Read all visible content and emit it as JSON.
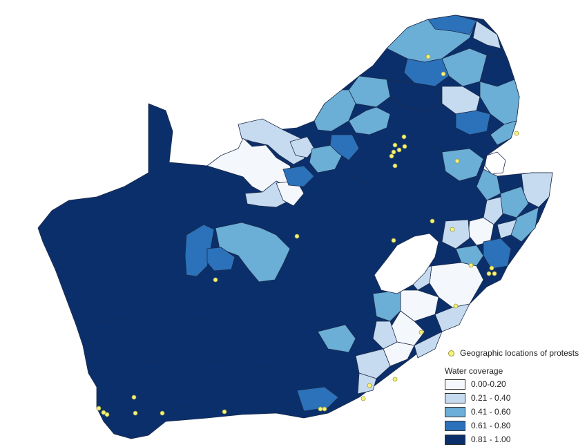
{
  "colors": {
    "c0": "#f4f8fd",
    "c1": "#c6dbef",
    "c2": "#6baed6",
    "c3": "#2b72ba",
    "c4": "#0b2f6b",
    "protest": "#f6f27a",
    "border": "#1c2b4a"
  },
  "legend": {
    "protest_label": "Geographic locations of protests",
    "title": "Water coverage",
    "bins": [
      {
        "label": "0.00-0.20",
        "color": "#f4f8fd"
      },
      {
        "label": "0.21 - 0.40",
        "color": "#c6dbef"
      },
      {
        "label": "0.41 - 0.60",
        "color": "#6baed6"
      },
      {
        "label": "0.61 - 0.80",
        "color": "#2b72ba"
      },
      {
        "label": "0.81 - 1.00",
        "color": "#0b2f6b"
      }
    ]
  }
}
